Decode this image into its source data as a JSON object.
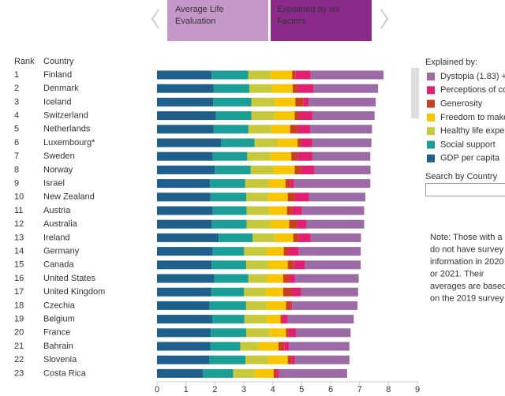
{
  "chart_data": {
    "type": "bar",
    "orientation": "horizontal",
    "stacked": true,
    "tabs": [
      "Average Life Evaluation",
      "Explained by six Factors"
    ],
    "rank_header": "Rank",
    "country_header": "Country",
    "legend_title": "Explained by:",
    "search_label": "Search by Country",
    "note": [
      "Note: Those with a",
      "do not have survey",
      "information in 2020",
      "or 2021. Their",
      "averages are based",
      "on the 2019 survey"
    ],
    "ranks": [
      1,
      2,
      3,
      4,
      5,
      6,
      7,
      8,
      9,
      10,
      11,
      12,
      13,
      14,
      15,
      16,
      17,
      18,
      19,
      20,
      21,
      22,
      23
    ],
    "categories": [
      "Finland",
      "Denmark",
      "Iceland",
      "Switzerland",
      "Netherlands",
      "Luxembourg*",
      "Sweden",
      "Norway",
      "Israel",
      "New Zealand",
      "Austria",
      "Australia",
      "Ireland",
      "Germany",
      "Canada",
      "United States",
      "United Kingdom",
      "Czechia",
      "Belgium",
      "France",
      "Bahrain",
      "Slovenia",
      "Costa Rica"
    ],
    "series": [
      {
        "name": "GDP per capita",
        "color": "#1f5f8b",
        "values": [
          1.89,
          1.95,
          1.94,
          2.03,
          1.95,
          2.21,
          1.92,
          2.0,
          1.83,
          1.85,
          1.93,
          1.9,
          2.13,
          1.92,
          1.89,
          1.98,
          1.87,
          1.82,
          1.91,
          1.86,
          1.85,
          1.81,
          1.58
        ]
      },
      {
        "name": "Social support",
        "color": "#1a9e96",
        "values": [
          1.26,
          1.24,
          1.32,
          1.23,
          1.21,
          1.16,
          1.2,
          1.24,
          1.22,
          1.24,
          1.17,
          1.2,
          1.17,
          1.09,
          1.19,
          1.18,
          1.14,
          1.26,
          1.11,
          1.22,
          1.03,
          1.25,
          1.05
        ]
      },
      {
        "name": "Healthy life expe",
        "color": "#c5c93b",
        "values": [
          0.78,
          0.78,
          0.8,
          0.82,
          0.79,
          0.79,
          0.8,
          0.79,
          0.82,
          0.75,
          0.77,
          0.8,
          0.78,
          0.78,
          0.78,
          0.63,
          0.75,
          0.72,
          0.76,
          0.81,
          0.63,
          0.77,
          0.74
        ]
      },
      {
        "name": "Freedom to make",
        "color": "#f7c600",
        "values": [
          0.74,
          0.72,
          0.72,
          0.68,
          0.65,
          0.7,
          0.72,
          0.73,
          0.57,
          0.68,
          0.62,
          0.67,
          0.63,
          0.59,
          0.66,
          0.57,
          0.6,
          0.66,
          0.49,
          0.57,
          0.69,
          0.69,
          0.66
        ]
      },
      {
        "name": "Generosity",
        "color": "#c8401f",
        "values": [
          0.11,
          0.19,
          0.27,
          0.15,
          0.27,
          0.12,
          0.22,
          0.22,
          0.16,
          0.25,
          0.19,
          0.26,
          0.19,
          0.16,
          0.22,
          0.22,
          0.29,
          0.16,
          0.05,
          0.07,
          0.2,
          0.12,
          0.09
        ]
      },
      {
        "name": "Perceptions of co",
        "color": "#e31f70",
        "values": [
          0.53,
          0.53,
          0.19,
          0.46,
          0.42,
          0.39,
          0.51,
          0.47,
          0.14,
          0.48,
          0.33,
          0.34,
          0.41,
          0.36,
          0.37,
          0.18,
          0.33,
          0.05,
          0.2,
          0.27,
          0.16,
          0.12,
          0.1
        ]
      },
      {
        "name": "Dystopia (1.83) +",
        "color": "#9c6aa5",
        "values": [
          2.52,
          2.23,
          2.32,
          2.15,
          2.14,
          2.04,
          2.0,
          1.93,
          2.63,
          1.95,
          2.15,
          1.99,
          1.74,
          2.14,
          1.93,
          2.21,
          1.97,
          2.26,
          2.28,
          1.89,
          2.09,
          1.89,
          2.35
        ]
      }
    ],
    "xlim": [
      0,
      9
    ],
    "xticks": [
      0,
      1,
      2,
      3,
      4,
      5,
      6,
      7,
      8,
      9
    ]
  }
}
